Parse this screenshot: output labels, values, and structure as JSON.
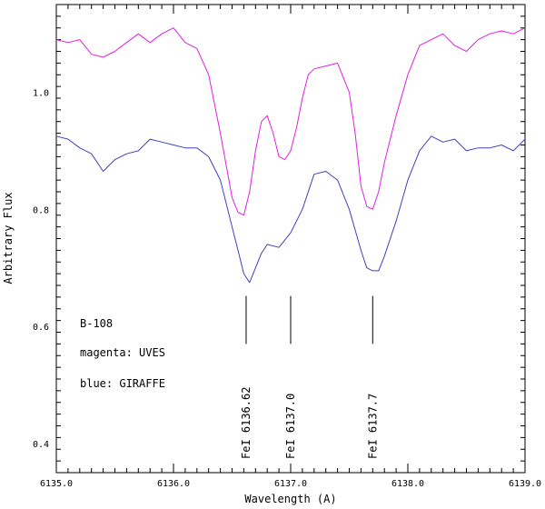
{
  "chart_data": {
    "type": "line",
    "title": "",
    "xlabel": "Wavelength (A)",
    "ylabel": "Arbitrary Flux",
    "xlim": [
      6135.0,
      6139.0
    ],
    "ylim": [
      0.35,
      1.15
    ],
    "x_ticks": [
      6135.0,
      6136.0,
      6137.0,
      6138.0,
      6139.0
    ],
    "x_tick_labels": [
      "6135.0",
      "6136.0",
      "6137.0",
      "6138.0",
      "6139.0"
    ],
    "y_ticks": [
      0.4,
      0.6,
      0.8,
      1.0
    ],
    "y_tick_labels": [
      "0.4",
      "0.6",
      "0.8",
      "1.0"
    ],
    "grid": false,
    "annotations": [
      "B-108",
      "magenta: UVES",
      "blue: GIRAFFE"
    ],
    "line_marks": [
      {
        "wavelength": 6136.62,
        "label": "FeI 6136.62"
      },
      {
        "wavelength": 6137.0,
        "label": "FeI 6137.0"
      },
      {
        "wavelength": 6137.7,
        "label": "FeI 6137.7"
      }
    ],
    "series": [
      {
        "color": "#e020e0",
        "x": [
          6135.0,
          6135.1,
          6135.2,
          6135.3,
          6135.4,
          6135.5,
          6135.6,
          6135.7,
          6135.8,
          6135.9,
          6136.0,
          6136.1,
          6136.2,
          6136.3,
          6136.4,
          6136.5,
          6136.55,
          6136.6,
          6136.65,
          6136.7,
          6136.75,
          6136.8,
          6136.85,
          6136.9,
          6136.95,
          6137.0,
          6137.05,
          6137.1,
          6137.15,
          6137.2,
          6137.3,
          6137.4,
          6137.5,
          6137.55,
          6137.6,
          6137.65,
          6137.7,
          6137.75,
          6137.8,
          6137.9,
          6138.0,
          6138.1,
          6138.2,
          6138.3,
          6138.4,
          6138.5,
          6138.6,
          6138.7,
          6138.8,
          6138.9,
          6139.0
        ],
        "y": [
          1.09,
          1.085,
          1.09,
          1.065,
          1.06,
          1.07,
          1.085,
          1.1,
          1.085,
          1.1,
          1.11,
          1.085,
          1.075,
          1.03,
          0.93,
          0.82,
          0.795,
          0.79,
          0.83,
          0.9,
          0.95,
          0.96,
          0.93,
          0.89,
          0.885,
          0.9,
          0.94,
          0.99,
          1.03,
          1.04,
          1.045,
          1.05,
          1.0,
          0.93,
          0.84,
          0.805,
          0.8,
          0.83,
          0.88,
          0.96,
          1.03,
          1.08,
          1.09,
          1.1,
          1.08,
          1.07,
          1.09,
          1.1,
          1.105,
          1.1,
          1.11
        ]
      },
      {
        "color": "#4040c0",
        "x": [
          6135.0,
          6135.1,
          6135.2,
          6135.3,
          6135.4,
          6135.5,
          6135.6,
          6135.7,
          6135.8,
          6135.9,
          6136.0,
          6136.1,
          6136.2,
          6136.3,
          6136.4,
          6136.5,
          6136.55,
          6136.6,
          6136.65,
          6136.7,
          6136.75,
          6136.8,
          6136.9,
          6137.0,
          6137.1,
          6137.2,
          6137.3,
          6137.4,
          6137.5,
          6137.6,
          6137.65,
          6137.7,
          6137.75,
          6137.8,
          6137.9,
          6138.0,
          6138.1,
          6138.2,
          6138.3,
          6138.4,
          6138.5,
          6138.6,
          6138.7,
          6138.8,
          6138.9,
          6139.0
        ],
        "y": [
          0.925,
          0.92,
          0.905,
          0.895,
          0.865,
          0.885,
          0.895,
          0.9,
          0.92,
          0.915,
          0.91,
          0.905,
          0.905,
          0.89,
          0.85,
          0.77,
          0.73,
          0.69,
          0.675,
          0.7,
          0.725,
          0.74,
          0.735,
          0.76,
          0.8,
          0.86,
          0.865,
          0.85,
          0.8,
          0.73,
          0.7,
          0.695,
          0.695,
          0.72,
          0.78,
          0.85,
          0.9,
          0.925,
          0.915,
          0.92,
          0.9,
          0.905,
          0.905,
          0.91,
          0.9,
          0.92
        ]
      }
    ]
  }
}
